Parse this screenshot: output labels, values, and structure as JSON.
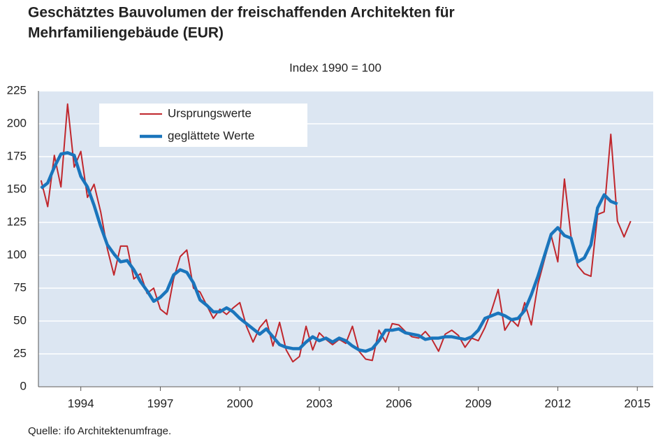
{
  "chart_data": {
    "type": "line",
    "title": "Geschätztes Bauvolumen der freischaffenden Architekten für",
    "title_line2": "Mehrfamiliengebäude (EUR)",
    "subtitle": "Index 1990 = 100",
    "source": "Quelle: ifo Architektenumfrage.",
    "x": [
      1992.5,
      1992.75,
      1993,
      1993.25,
      1993.5,
      1993.75,
      1994,
      1994.25,
      1994.5,
      1994.75,
      1995,
      1995.25,
      1995.5,
      1995.75,
      1996,
      1996.25,
      1996.5,
      1996.75,
      1997,
      1997.25,
      1997.5,
      1997.75,
      1998,
      1998.25,
      1998.5,
      1998.75,
      1999,
      1999.25,
      1999.5,
      1999.75,
      2000,
      2000.25,
      2000.5,
      2000.75,
      2001,
      2001.25,
      2001.5,
      2001.75,
      2002,
      2002.25,
      2002.5,
      2002.75,
      2003,
      2003.25,
      2003.5,
      2003.75,
      2004,
      2004.25,
      2004.5,
      2004.75,
      2005,
      2005.25,
      2005.5,
      2005.75,
      2006,
      2006.25,
      2006.5,
      2006.75,
      2007,
      2007.25,
      2007.5,
      2007.75,
      2008,
      2008.25,
      2008.5,
      2008.75,
      2009,
      2009.25,
      2009.5,
      2009.75,
      2010,
      2010.25,
      2010.5,
      2010.75,
      2011,
      2011.25,
      2011.5,
      2011.75,
      2012,
      2012.25,
      2012.5,
      2012.75,
      2013,
      2013.25,
      2013.5,
      2013.75,
      2014,
      2014.25,
      2014.5,
      2014.75
    ],
    "series": [
      {
        "name": "Ursprungswerte",
        "color": "#c0272d",
        "width": 2,
        "values": [
          157,
          137,
          176,
          152,
          215,
          167,
          179,
          144,
          154,
          133,
          105,
          85,
          107,
          107,
          82,
          86,
          71,
          75,
          59,
          55,
          82,
          99,
          104,
          75,
          72,
          62,
          52,
          59,
          55,
          60,
          64,
          46,
          34,
          45,
          51,
          31,
          49,
          28,
          19,
          23,
          46,
          28,
          41,
          36,
          32,
          36,
          33,
          46,
          27,
          21,
          20,
          43,
          34,
          48,
          47,
          42,
          38,
          37,
          42,
          36,
          27,
          40,
          43,
          39,
          30,
          37,
          35,
          45,
          58,
          74,
          43,
          51,
          46,
          64,
          47,
          78,
          97,
          115,
          95,
          158,
          114,
          92,
          86,
          84,
          131,
          133,
          192,
          126,
          114,
          126
        ]
      },
      {
        "name": "geglättete Werte",
        "color": "#1a75bc",
        "width": 4.5,
        "values": [
          151,
          155,
          167,
          177,
          178,
          176,
          160,
          152,
          138,
          122,
          108,
          101,
          95,
          96,
          89,
          80,
          73,
          65,
          68,
          73,
          85,
          89,
          87,
          79,
          66,
          62,
          57,
          57,
          60,
          57,
          52,
          48,
          44,
          40,
          44,
          38,
          32,
          30,
          29,
          29,
          34,
          38,
          35,
          37,
          34,
          37,
          35,
          31,
          28,
          27,
          29,
          35,
          43,
          43,
          44,
          41,
          40,
          39,
          36,
          37,
          37,
          38,
          38,
          37,
          36,
          38,
          43,
          52,
          54,
          56,
          54,
          51,
          52,
          58,
          70,
          84,
          100,
          116,
          121,
          115,
          113,
          95,
          98,
          108,
          136,
          146,
          141,
          139,
          null,
          null
        ]
      }
    ],
    "xlim": [
      1992.4,
      2015.6
    ],
    "xticks": [
      1994,
      1997,
      2000,
      2003,
      2006,
      2009,
      2012,
      2015
    ],
    "ylim": [
      0,
      225
    ],
    "yticks": [
      0,
      25,
      50,
      75,
      100,
      125,
      150,
      175,
      200,
      225
    ],
    "grid": true,
    "legend": "upper left"
  }
}
